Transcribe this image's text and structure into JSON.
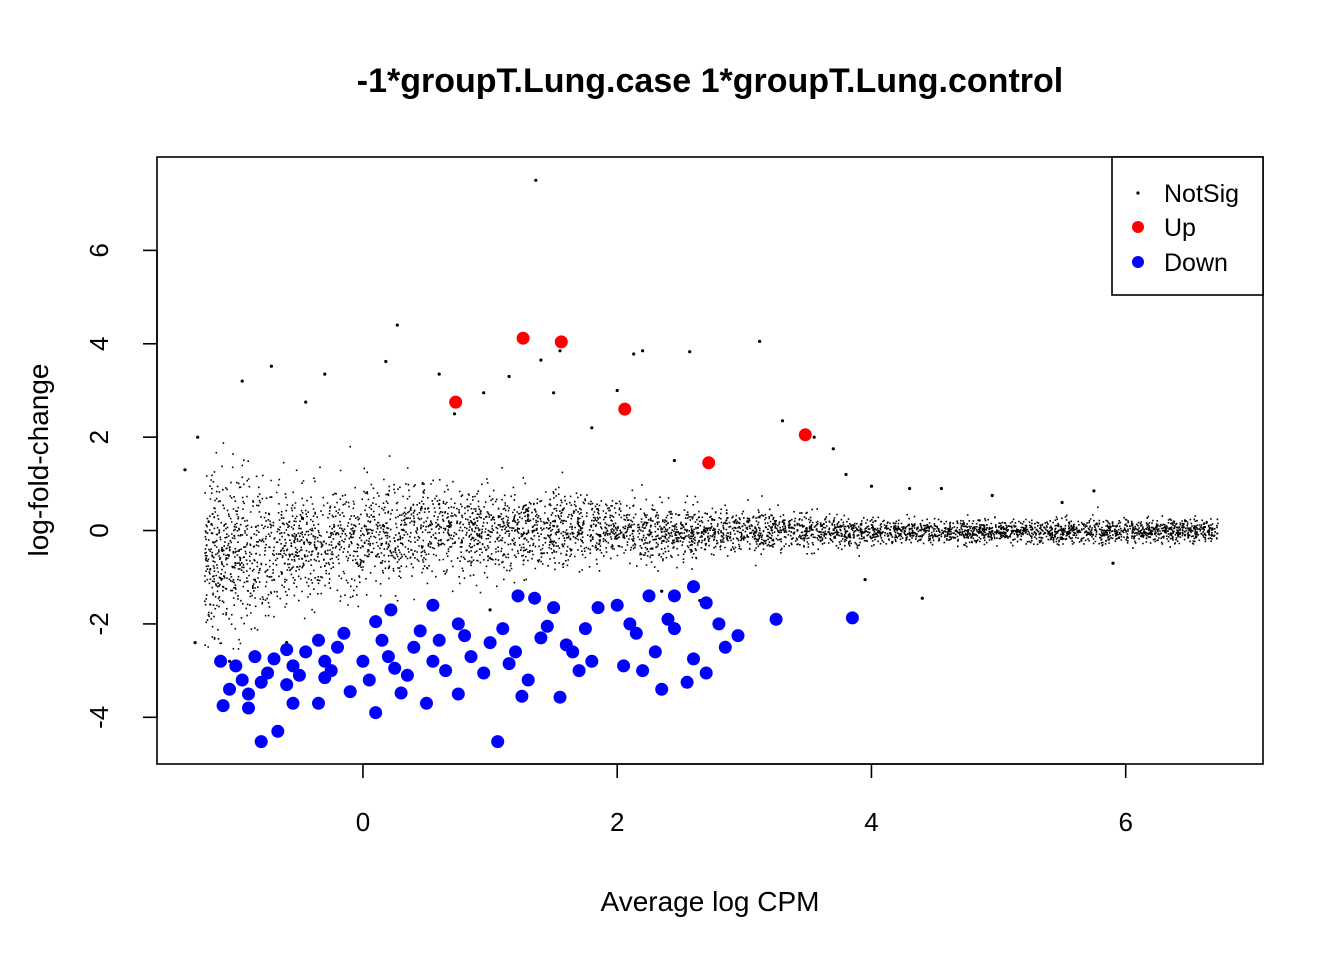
{
  "chart_data": {
    "type": "scatter",
    "title": "-1*groupT.Lung.case 1*groupT.Lung.control",
    "xlabel": "Average log CPM",
    "ylabel": "log-fold-change",
    "xlim": [
      -1.62,
      7.08
    ],
    "ylim": [
      -5.0,
      8.0
    ],
    "x_ticks": [
      0,
      2,
      4,
      6
    ],
    "x_tick_labels": [
      "0",
      "2",
      "4",
      "6"
    ],
    "y_ticks": [
      -4,
      -2,
      0,
      2,
      4,
      6
    ],
    "y_tick_labels": [
      "-4",
      "-2",
      "0",
      "2",
      "4",
      "6"
    ],
    "grid": false,
    "legend": {
      "position": "top-right",
      "entries": [
        {
          "label": "NotSig",
          "color": "#000000"
        },
        {
          "label": "Up",
          "color": "#ff0000"
        },
        {
          "label": "Down",
          "color": "#0000ff"
        }
      ]
    },
    "series": [
      {
        "name": "NotSig",
        "color": "#000000",
        "marker": "dot",
        "points": [
          [
            1.36,
            7.5
          ],
          [
            0.27,
            4.4
          ],
          [
            3.12,
            4.05
          ],
          [
            1.55,
            3.85
          ],
          [
            2.2,
            3.85
          ],
          [
            1.4,
            3.65
          ],
          [
            2.57,
            3.83
          ],
          [
            0.18,
            3.62
          ],
          [
            -0.72,
            3.52
          ],
          [
            2.13,
            3.78
          ],
          [
            -0.3,
            3.35
          ],
          [
            0.6,
            3.35
          ],
          [
            0.95,
            2.95
          ],
          [
            1.5,
            2.95
          ],
          [
            2.0,
            3.0
          ],
          [
            3.3,
            2.35
          ],
          [
            3.55,
            2.0
          ],
          [
            3.7,
            1.75
          ],
          [
            2.45,
            1.5
          ],
          [
            4.3,
            0.9
          ],
          [
            5.75,
            0.85
          ],
          [
            4.95,
            0.75
          ],
          [
            5.5,
            0.6
          ],
          [
            4.0,
            0.95
          ],
          [
            3.8,
            1.2
          ],
          [
            4.55,
            0.9
          ],
          [
            1.15,
            3.3
          ],
          [
            -0.95,
            3.2
          ],
          [
            -1.3,
            2.0
          ],
          [
            -1.4,
            1.3
          ],
          [
            -0.45,
            2.75
          ],
          [
            0.72,
            2.5
          ],
          [
            1.8,
            2.2
          ],
          [
            5.9,
            -0.7
          ],
          [
            4.4,
            -1.45
          ],
          [
            3.95,
            -1.05
          ],
          [
            -1.32,
            -2.4
          ],
          [
            -1.05,
            -2.8
          ],
          [
            -0.6,
            -2.4
          ],
          [
            2.65,
            -1.5
          ],
          [
            2.35,
            -1.3
          ],
          [
            1.0,
            -1.7
          ]
        ]
      },
      {
        "name": "Up",
        "color": "#ff0000",
        "marker": "filled-circle",
        "points": [
          [
            1.26,
            4.12
          ],
          [
            1.56,
            4.04
          ],
          [
            0.73,
            2.75
          ],
          [
            2.06,
            2.6
          ],
          [
            3.48,
            2.05
          ],
          [
            2.72,
            1.45
          ]
        ]
      },
      {
        "name": "Down",
        "color": "#0000ff",
        "marker": "filled-circle",
        "points": [
          [
            -0.8,
            -4.52
          ],
          [
            -0.67,
            -4.3
          ],
          [
            1.06,
            -4.52
          ],
          [
            0.1,
            -3.9
          ],
          [
            -0.55,
            -3.7
          ],
          [
            -1.1,
            -3.75
          ],
          [
            -0.9,
            -3.8
          ],
          [
            -0.35,
            -3.7
          ],
          [
            -0.1,
            -3.45
          ],
          [
            0.3,
            -3.48
          ],
          [
            0.5,
            -3.7
          ],
          [
            0.75,
            -3.5
          ],
          [
            1.25,
            -3.55
          ],
          [
            1.55,
            -3.57
          ],
          [
            2.35,
            -3.4
          ],
          [
            2.55,
            -3.25
          ],
          [
            2.7,
            -3.05
          ],
          [
            2.2,
            -3.0
          ],
          [
            2.95,
            -2.25
          ],
          [
            2.85,
            -2.5
          ],
          [
            2.6,
            -2.75
          ],
          [
            3.25,
            -1.9
          ],
          [
            3.85,
            -1.87
          ],
          [
            2.6,
            -1.2
          ],
          [
            2.45,
            -1.4
          ],
          [
            2.25,
            -1.4
          ],
          [
            2.0,
            -1.6
          ],
          [
            1.85,
            -1.65
          ],
          [
            2.1,
            -2.0
          ],
          [
            1.5,
            -1.65
          ],
          [
            1.35,
            -1.45
          ],
          [
            1.22,
            -1.4
          ],
          [
            0.55,
            -1.6
          ],
          [
            0.22,
            -1.7
          ],
          [
            0.1,
            -1.95
          ],
          [
            -0.15,
            -2.2
          ],
          [
            -0.35,
            -2.35
          ],
          [
            -0.6,
            -2.55
          ],
          [
            -0.85,
            -2.7
          ],
          [
            -1.0,
            -2.9
          ],
          [
            -1.12,
            -2.8
          ],
          [
            -0.95,
            -3.2
          ],
          [
            -0.75,
            -3.05
          ],
          [
            -0.5,
            -3.1
          ],
          [
            -0.25,
            -3.0
          ],
          [
            0.0,
            -2.8
          ],
          [
            0.2,
            -2.7
          ],
          [
            0.4,
            -2.5
          ],
          [
            0.6,
            -2.35
          ],
          [
            0.8,
            -2.25
          ],
          [
            1.0,
            -2.4
          ],
          [
            1.2,
            -2.6
          ],
          [
            1.4,
            -2.3
          ],
          [
            1.6,
            -2.45
          ],
          [
            1.8,
            -2.8
          ],
          [
            2.3,
            -2.6
          ],
          [
            -0.9,
            -3.5
          ],
          [
            -0.6,
            -3.3
          ],
          [
            -0.3,
            -3.15
          ],
          [
            0.05,
            -3.2
          ],
          [
            0.35,
            -3.1
          ],
          [
            0.65,
            -3.0
          ],
          [
            0.95,
            -3.05
          ],
          [
            1.3,
            -3.2
          ],
          [
            1.7,
            -3.0
          ],
          [
            2.05,
            -2.9
          ],
          [
            -0.7,
            -2.75
          ],
          [
            -0.45,
            -2.6
          ],
          [
            -0.2,
            -2.5
          ],
          [
            0.15,
            -2.35
          ],
          [
            0.45,
            -2.15
          ],
          [
            0.75,
            -2.0
          ],
          [
            1.1,
            -2.1
          ],
          [
            1.45,
            -2.05
          ],
          [
            1.75,
            -2.1
          ],
          [
            2.15,
            -2.2
          ],
          [
            2.4,
            -1.9
          ],
          [
            -1.05,
            -3.4
          ],
          [
            -0.8,
            -3.25
          ],
          [
            -0.55,
            -2.9
          ],
          [
            -0.3,
            -2.8
          ],
          [
            0.25,
            -2.95
          ],
          [
            0.55,
            -2.8
          ],
          [
            0.85,
            -2.7
          ],
          [
            1.15,
            -2.85
          ],
          [
            1.65,
            -2.6
          ],
          [
            2.45,
            -2.1
          ],
          [
            2.7,
            -1.55
          ],
          [
            2.8,
            -2.0
          ]
        ]
      }
    ]
  }
}
